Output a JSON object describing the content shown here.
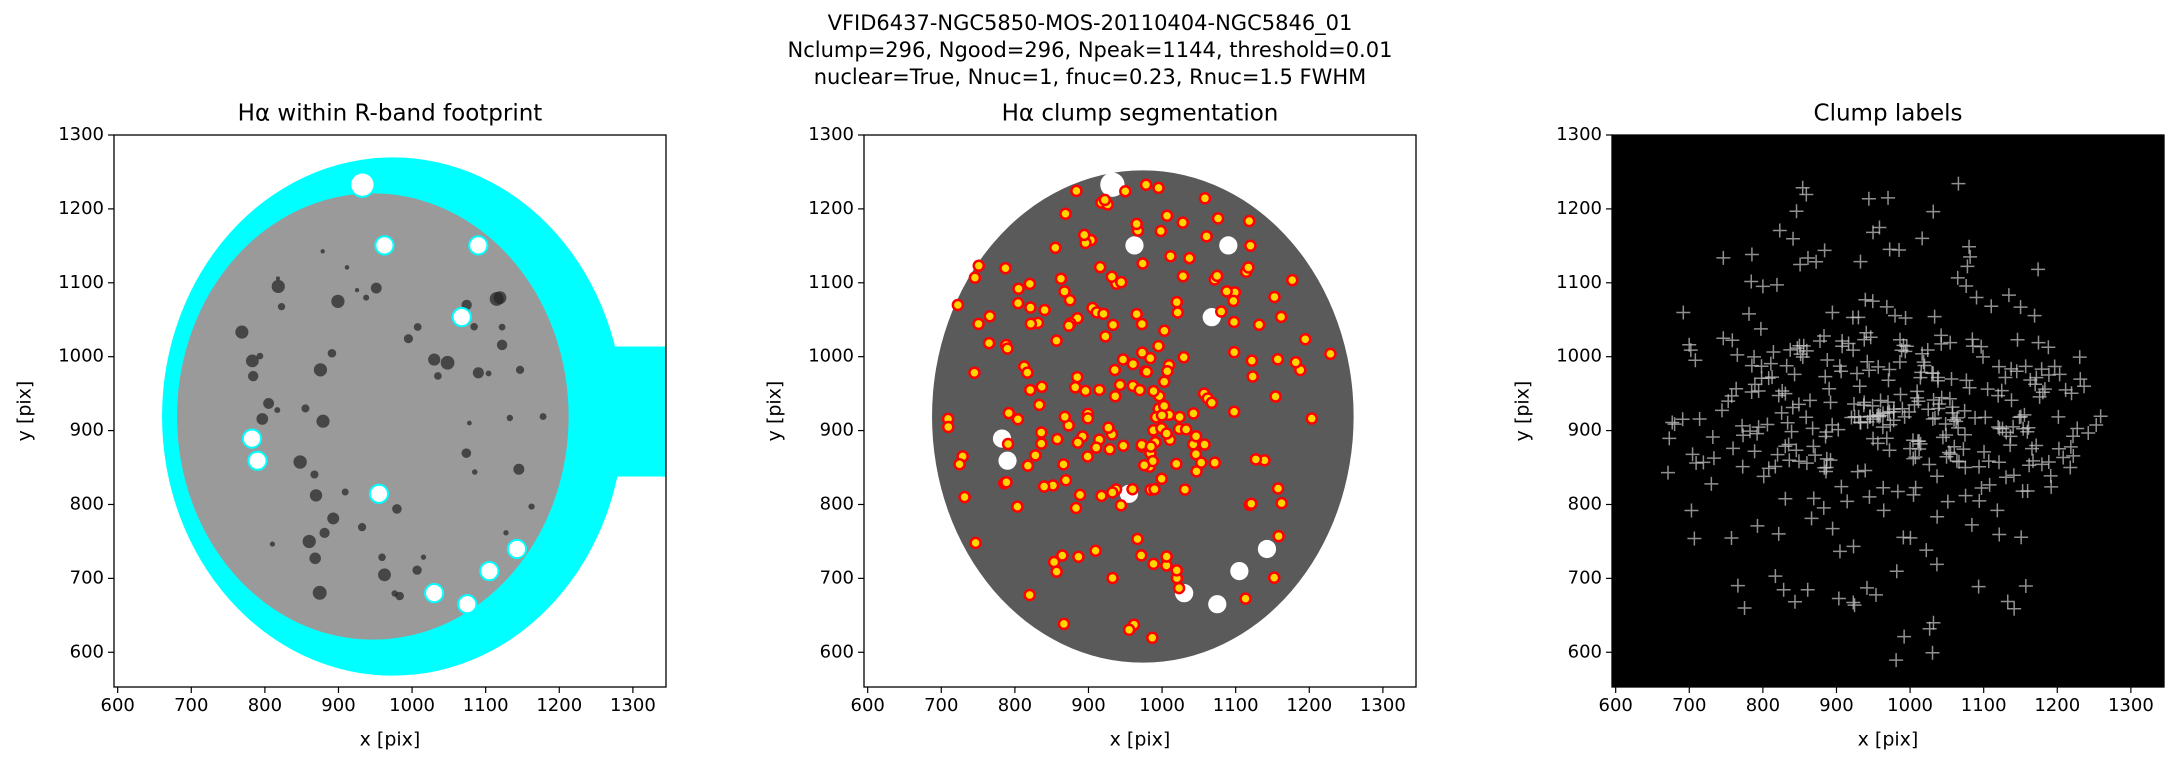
{
  "suptitle": [
    "VFID6437-NGC5850-MOS-20110404-NGC5846_01",
    "Nclump=296, Ngood=296, Npeak=1144, threshold=0.01",
    "nuclear=True, Nnuc=1, fnuc=0.23, Rnuc=1.5 FWHM"
  ],
  "chart_data": [
    {
      "type": "image",
      "title": "Hα within R-band footprint",
      "xlabel": "x [pix]",
      "ylabel": "y [pix]",
      "xlim": [
        595,
        1345
      ],
      "ylim": [
        553,
        1300
      ],
      "xticks": [
        600,
        700,
        800,
        900,
        1000,
        1100,
        1200,
        1300
      ],
      "yticks": [
        600,
        700,
        800,
        900,
        1000,
        1100,
        1200,
        1300
      ],
      "background": "#ffffff"
    },
    {
      "type": "image",
      "title": "Hα clump segmentation",
      "xlabel": "x [pix]",
      "ylabel": "y [pix]",
      "xlim": [
        595,
        1345
      ],
      "ylim": [
        553,
        1300
      ],
      "xticks": [
        600,
        700,
        800,
        900,
        1000,
        1100,
        1200,
        1300
      ],
      "yticks": [
        600,
        700,
        800,
        900,
        1000,
        1100,
        1200,
        1300
      ],
      "background": "#ffffff"
    },
    {
      "type": "image",
      "title": "Clump labels",
      "xlabel": "x [pix]",
      "ylabel": "y [pix]",
      "xlim": [
        595,
        1345
      ],
      "ylim": [
        553,
        1300
      ],
      "xticks": [
        600,
        700,
        800,
        900,
        1000,
        1100,
        1200,
        1300
      ],
      "yticks": [
        600,
        700,
        800,
        900,
        1000,
        1100,
        1200,
        1300
      ],
      "background": "#000000"
    }
  ]
}
